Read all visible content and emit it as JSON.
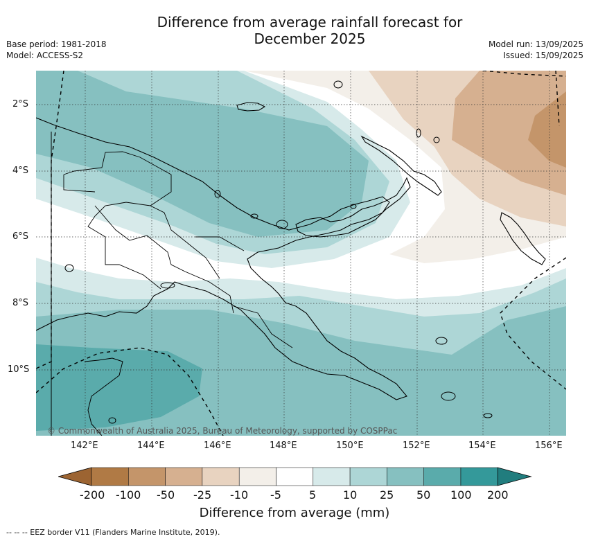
{
  "title_line1": "Difference from average rainfall forecast for",
  "title_line2": "December 2025",
  "base_period": "Base period: 1981-2018",
  "model": "Model: ACCESS-S2",
  "model_run": "Model run: 13/09/2025",
  "issued": "Issued: 15/09/2025",
  "copyright": "© Commonwealth of Australia 2025, Bureau of Meteorology, supported by COSPPac",
  "lat_labels": [
    "2°S",
    "4°S",
    "6°S",
    "8°S",
    "10°S"
  ],
  "lon_labels": [
    "142°E",
    "144°E",
    "146°E",
    "148°E",
    "150°E",
    "152°E",
    "154°E",
    "156°E"
  ],
  "colorbar": {
    "labels": [
      "-200",
      "-100",
      "-50",
      "-25",
      "-10",
      "-5",
      "5",
      "10",
      "25",
      "50",
      "100",
      "200"
    ],
    "colors": [
      "#9c6432",
      "#b07a45",
      "#c4956a",
      "#d6b090",
      "#e8d3c0",
      "#f3efe9",
      "#ffffff",
      "#d7eaea",
      "#add6d6",
      "#86c0c0",
      "#5aabab",
      "#34999a",
      "#217d7e"
    ],
    "title": "Difference from average (mm)"
  },
  "eez_note": "--  --  -- EEZ border V11 (Flanders Marine Institute, 2019)."
}
